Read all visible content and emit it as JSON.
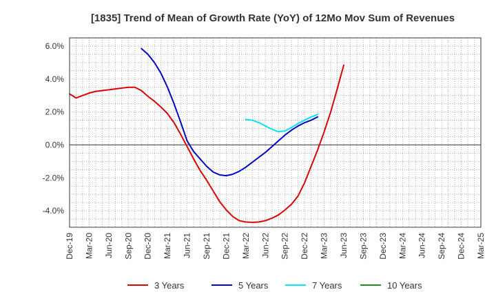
{
  "chart_data": {
    "type": "line",
    "title": "[1835]  Trend of Mean of Growth Rate (YoY) of 12Mo Mov Sum of Revenues",
    "xlabel": "",
    "ylabel": "",
    "ylim": [
      -5.0,
      6.5
    ],
    "x_ticks": [
      "Dec-19",
      "Mar-20",
      "Jun-20",
      "Sep-20",
      "Dec-20",
      "Mar-21",
      "Jun-21",
      "Sep-21",
      "Dec-21",
      "Mar-22",
      "Jun-22",
      "Sep-22",
      "Dec-22",
      "Mar-23",
      "Jun-23",
      "Sep-23",
      "Dec-23",
      "Mar-24",
      "Jun-24",
      "Sep-24",
      "Dec-24",
      "Mar-25"
    ],
    "y_ticks": [
      {
        "value": 6.0,
        "label": "6.0%"
      },
      {
        "value": 4.0,
        "label": "4.0%"
      },
      {
        "value": 2.0,
        "label": "2.0%"
      },
      {
        "value": 0.0,
        "label": "0.0%"
      },
      {
        "value": -2.0,
        "label": "-2.0%"
      },
      {
        "value": -4.0,
        "label": "-4.0%"
      }
    ],
    "grid": true,
    "series": [
      {
        "name": "3 Years",
        "color": "#dd0000",
        "points": [
          [
            0,
            3.1
          ],
          [
            1,
            2.85
          ],
          [
            2,
            3.0
          ],
          [
            3,
            3.15
          ],
          [
            4,
            3.25
          ],
          [
            5,
            3.3
          ],
          [
            6,
            3.35
          ],
          [
            7,
            3.4
          ],
          [
            8,
            3.45
          ],
          [
            9,
            3.5
          ],
          [
            10,
            3.5
          ],
          [
            11,
            3.3
          ],
          [
            12,
            2.95
          ],
          [
            13,
            2.65
          ],
          [
            14,
            2.3
          ],
          [
            15,
            1.9
          ],
          [
            16,
            1.35
          ],
          [
            17,
            0.65
          ],
          [
            18,
            -0.1
          ],
          [
            19,
            -0.85
          ],
          [
            20,
            -1.55
          ],
          [
            21,
            -2.15
          ],
          [
            22,
            -2.8
          ],
          [
            23,
            -3.45
          ],
          [
            24,
            -3.95
          ],
          [
            25,
            -4.35
          ],
          [
            26,
            -4.6
          ],
          [
            27,
            -4.68
          ],
          [
            28,
            -4.7
          ],
          [
            29,
            -4.68
          ],
          [
            30,
            -4.6
          ],
          [
            31,
            -4.45
          ],
          [
            32,
            -4.25
          ],
          [
            33,
            -3.95
          ],
          [
            34,
            -3.6
          ],
          [
            35,
            -3.1
          ],
          [
            36,
            -2.3
          ],
          [
            37,
            -1.3
          ],
          [
            38,
            -0.3
          ],
          [
            39,
            0.8
          ],
          [
            40,
            2.0
          ],
          [
            41,
            3.4
          ],
          [
            42,
            4.85
          ]
        ]
      },
      {
        "name": "5 Years",
        "color": "#0000cc",
        "points": [
          [
            11,
            5.85
          ],
          [
            12,
            5.5
          ],
          [
            13,
            5.0
          ],
          [
            14,
            4.35
          ],
          [
            15,
            3.5
          ],
          [
            16,
            2.5
          ],
          [
            17,
            1.4
          ],
          [
            18,
            0.25
          ],
          [
            19,
            -0.4
          ],
          [
            20,
            -0.85
          ],
          [
            21,
            -1.3
          ],
          [
            22,
            -1.65
          ],
          [
            23,
            -1.82
          ],
          [
            24,
            -1.87
          ],
          [
            25,
            -1.78
          ],
          [
            26,
            -1.6
          ],
          [
            27,
            -1.35
          ],
          [
            28,
            -1.05
          ],
          [
            29,
            -0.75
          ],
          [
            30,
            -0.45
          ],
          [
            31,
            -0.1
          ],
          [
            32,
            0.25
          ],
          [
            33,
            0.6
          ],
          [
            34,
            0.9
          ],
          [
            35,
            1.15
          ],
          [
            36,
            1.35
          ],
          [
            37,
            1.5
          ],
          [
            38,
            1.7
          ]
        ]
      },
      {
        "name": "7 Years",
        "color": "#00e5ee",
        "points": [
          [
            27,
            1.55
          ],
          [
            28,
            1.5
          ],
          [
            29,
            1.35
          ],
          [
            30,
            1.15
          ],
          [
            31,
            0.95
          ],
          [
            32,
            0.8
          ],
          [
            33,
            0.85
          ],
          [
            34,
            1.05
          ],
          [
            35,
            1.3
          ],
          [
            36,
            1.5
          ],
          [
            37,
            1.7
          ],
          [
            38,
            1.85
          ]
        ]
      },
      {
        "name": "10 Years",
        "color": "#228b22",
        "points": []
      }
    ],
    "legend": "bottom"
  }
}
